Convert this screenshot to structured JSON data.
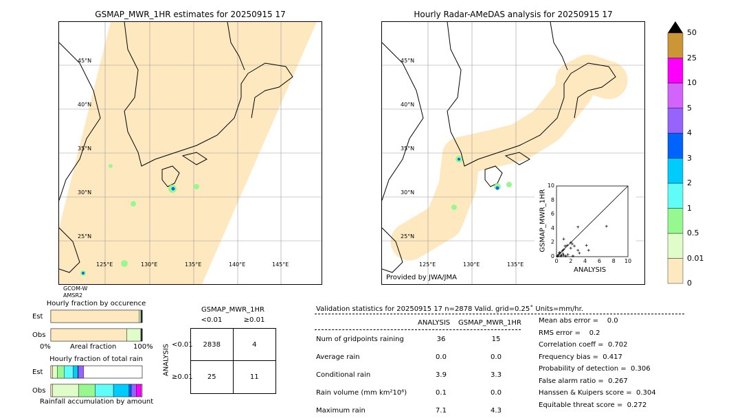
{
  "left_map": {
    "title": "GSMAP_MWR_1HR estimates for 20250915 17",
    "sensor_line1": "GCOM-W",
    "sensor_line2": "AMSR2"
  },
  "right_map": {
    "title": "Hourly Radar-AMeDAS analysis for 20250915 17",
    "credit": "Provided by JWA/JMA"
  },
  "lat_labels": [
    "45°N",
    "40°N",
    "35°N",
    "30°N",
    "25°N"
  ],
  "lon_labels_left": [
    "125°E",
    "130°E",
    "135°E",
    "140°E",
    "145°E"
  ],
  "lon_labels_right": [
    "125°E",
    "130°E",
    "135°E"
  ],
  "colorbar": {
    "levels": [
      "0",
      "0.01",
      "0.5",
      "1",
      "2",
      "3",
      "4",
      "5",
      "10",
      "25",
      "50"
    ],
    "colors": [
      "#fee8c0",
      "#e0fcc8",
      "#98f890",
      "#60fcf8",
      "#00ccfc",
      "#0064fc",
      "#9664fc",
      "#d264fc",
      "#fc00fc",
      "#cc9636"
    ],
    "extend_color": "#000000"
  },
  "chart_data": [
    {
      "type": "scatter",
      "xlabel": "ANALYSIS",
      "ylabel": "GSMAP_MWR_1HR",
      "xlim": [
        0,
        10
      ],
      "ylim": [
        0,
        10
      ],
      "ticks": [
        "0",
        "2",
        "4",
        "6",
        "8",
        "10"
      ],
      "points": [
        [
          3,
          4.2
        ],
        [
          7,
          4.3
        ],
        [
          1,
          2.5
        ],
        [
          2,
          2
        ],
        [
          2.2,
          1.8
        ],
        [
          4.2,
          1.6
        ],
        [
          4.5,
          0.9
        ],
        [
          3,
          0.9
        ],
        [
          3.2,
          0.5
        ],
        [
          2.5,
          1.5
        ],
        [
          1.5,
          1.6
        ],
        [
          1.2,
          1.5
        ],
        [
          2,
          1.2
        ],
        [
          0.5,
          0.5
        ],
        [
          0.8,
          0.8
        ],
        [
          1,
          1
        ],
        [
          0.3,
          0.3
        ],
        [
          0.6,
          0.1
        ],
        [
          1,
          0.2
        ],
        [
          1.3,
          0.1
        ],
        [
          0.2,
          0.1
        ],
        [
          0.4,
          0.6
        ],
        [
          0.9,
          0.4
        ],
        [
          2.3,
          0.1
        ],
        [
          1.6,
          0.3
        ],
        [
          0.1,
          0.05
        ],
        [
          0.7,
          0.2
        ]
      ]
    },
    {
      "type": "bar",
      "title": "Hourly fraction by occurence",
      "xlabel": "Areal fraction",
      "x_min_label": "0%",
      "x_max_label": "100%",
      "categories": [
        "Est",
        "Obs"
      ],
      "series": [
        {
          "color": "#fee8c0",
          "values": [
            96.5,
            83
          ]
        },
        {
          "color": "#e0fcc8",
          "values": [
            2,
            15.5
          ]
        },
        {
          "color": "#98f890",
          "values": [
            0.5,
            0.5
          ]
        },
        {
          "color": "#0064fc",
          "values": [
            0.5,
            0.5
          ]
        },
        {
          "color": "#000000",
          "values": [
            0.5,
            0.5
          ]
        }
      ]
    },
    {
      "type": "bar",
      "title": "Hourly fraction of total rain",
      "xlabel": "Rainfall accumulation by amount",
      "categories": [
        "Est",
        "Obs"
      ],
      "series": [
        {
          "color": "#fee8c0",
          "values": [
            2,
            2
          ]
        },
        {
          "color": "#e0fcc8",
          "values": [
            5,
            28.5
          ]
        },
        {
          "color": "#98f890",
          "values": [
            7.5,
            18
          ]
        },
        {
          "color": "#60fcf8",
          "values": [
            10,
            20
          ]
        },
        {
          "color": "#00ccfc",
          "values": [
            5,
            17
          ]
        },
        {
          "color": "#0064fc",
          "values": [
            0.5,
            2.5
          ]
        },
        {
          "color": "#9664fc",
          "values": [
            6,
            5.5
          ]
        },
        {
          "color": "#fc00fc",
          "values": [
            0,
            5.5
          ]
        }
      ]
    }
  ],
  "contingency": {
    "title": "GSMAP_MWR_1HR",
    "col_labels": [
      "<0.01",
      "≥0.01"
    ],
    "row_title": "ANALYSIS",
    "row_labels": [
      "<0.01",
      "≥0.01"
    ],
    "cells": [
      [
        "2838",
        "4"
      ],
      [
        "25",
        "11"
      ]
    ]
  },
  "stats": {
    "header": "Validation statistics for 20250915 17  n=2878 Valid. grid=0.25˚ Units=mm/hr.",
    "col1": "ANALYSIS",
    "col2": "GSMAP_MWR_1HR",
    "rows": [
      {
        "label": "Num of gridpoints raining",
        "a": "36",
        "g": "15"
      },
      {
        "label": "Average rain",
        "a": "0.0",
        "g": "0.0"
      },
      {
        "label": "Conditional rain",
        "a": "3.9",
        "g": "3.3"
      },
      {
        "label": "Rain volume (mm km²10⁶)",
        "a": "0.1",
        "g": "0.0"
      },
      {
        "label": "Maximum rain",
        "a": "7.1",
        "g": "4.3"
      }
    ],
    "scores": [
      "Mean abs error =    0.0",
      "RMS error =    0.2",
      "Correlation coeff =  0.702",
      "Frequency bias =  0.417",
      "Probability of detection =  0.306",
      "False alarm ratio =  0.267",
      "Hanssen & Kuipers score =  0.304",
      "Equitable threat score =  0.272"
    ]
  }
}
